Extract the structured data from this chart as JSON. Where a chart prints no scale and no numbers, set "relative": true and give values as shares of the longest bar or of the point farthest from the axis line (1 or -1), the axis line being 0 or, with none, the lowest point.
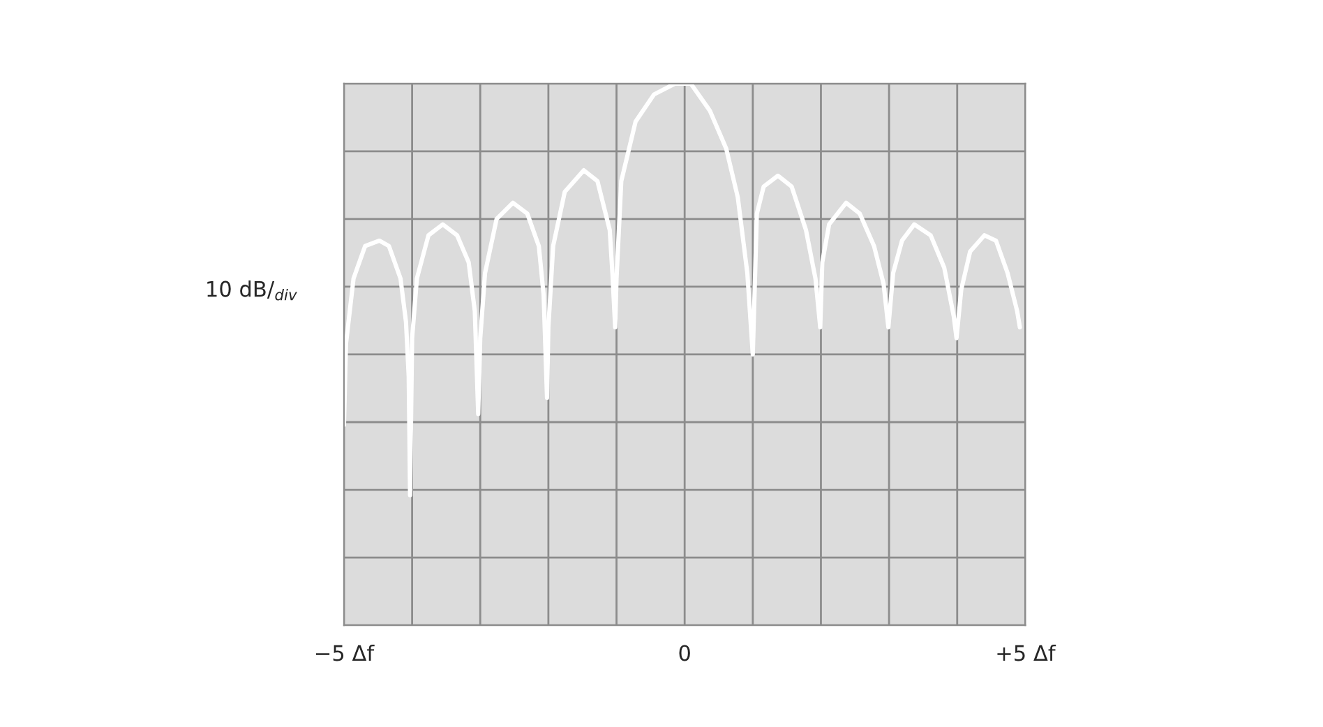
{
  "chart_data": {
    "type": "line",
    "relative": true,
    "ylabel": "10 dB/$_{div}$",
    "xlim": [
      -5,
      5
    ],
    "xticks": [
      {
        "value": -5,
        "label": "−5 Δf"
      },
      0,
      {
        "value": 5,
        "label": "+5 Δf"
      }
    ],
    "grid": true,
    "line_style": "solid",
    "series": [
      {
        "color": "#ffffff",
        "x": [
          -5.0,
          -4.97,
          -4.86,
          -4.69,
          -4.48,
          -4.34,
          -4.17,
          -4.09,
          -4.05,
          -4.03,
          -4.0,
          -3.93,
          -3.76,
          -3.55,
          -3.34,
          -3.17,
          -3.08,
          -3.03,
          -3.0,
          -2.93,
          -2.76,
          -2.52,
          -2.31,
          -2.14,
          -2.07,
          -2.02,
          -2.0,
          -1.93,
          -1.76,
          -1.48,
          -1.28,
          -1.1,
          -1.06,
          -1.02,
          -1.0,
          -0.93,
          -0.72,
          -0.45,
          -0.14,
          0.09,
          0.37,
          0.61,
          0.78,
          0.92,
          1.0,
          1.06,
          1.16,
          1.37,
          1.57,
          1.78,
          1.92,
          1.99,
          2.02,
          2.12,
          2.37,
          2.57,
          2.78,
          2.92,
          2.99,
          3.06,
          3.19,
          3.37,
          3.61,
          3.81,
          3.95,
          3.99,
          4.06,
          4.19,
          4.4,
          4.57,
          4.74,
          4.88,
          4.92
        ],
        "values": [
          0.37,
          0.52,
          0.64,
          0.7,
          0.71,
          0.7,
          0.64,
          0.56,
          0.46,
          0.24,
          0.53,
          0.64,
          0.72,
          0.74,
          0.72,
          0.67,
          0.58,
          0.39,
          0.53,
          0.65,
          0.75,
          0.78,
          0.76,
          0.7,
          0.61,
          0.42,
          0.55,
          0.7,
          0.8,
          0.84,
          0.82,
          0.73,
          0.65,
          0.55,
          0.64,
          0.82,
          0.93,
          0.98,
          1.0,
          1.0,
          0.95,
          0.88,
          0.79,
          0.65,
          0.5,
          0.76,
          0.81,
          0.83,
          0.81,
          0.73,
          0.64,
          0.55,
          0.67,
          0.74,
          0.78,
          0.76,
          0.7,
          0.63,
          0.55,
          0.65,
          0.71,
          0.74,
          0.72,
          0.66,
          0.57,
          0.53,
          0.62,
          0.69,
          0.72,
          0.71,
          0.65,
          0.58,
          0.55
        ]
      }
    ]
  }
}
